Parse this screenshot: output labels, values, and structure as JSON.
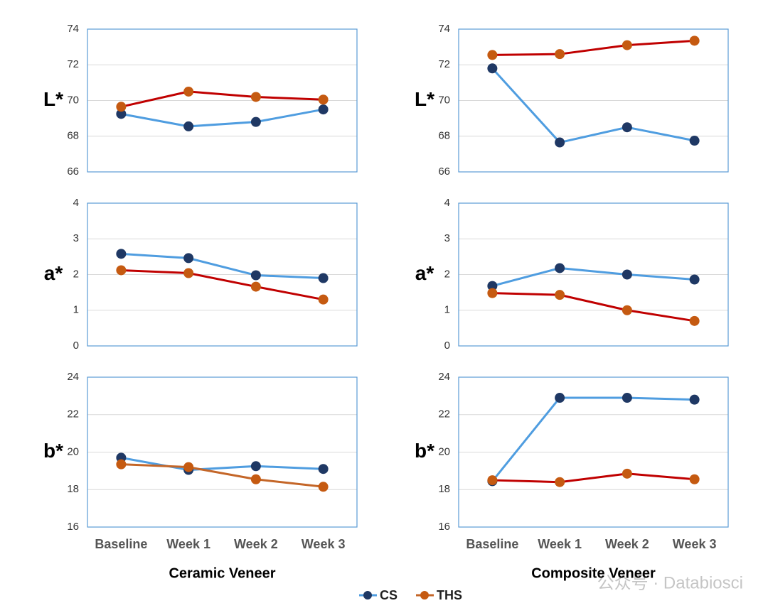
{
  "chart_data": [
    {
      "type": "line",
      "ylabel": "L*",
      "categories": [
        null,
        null,
        null,
        null
      ],
      "ylim": [
        66,
        74
      ],
      "yticks": [
        66,
        68,
        70,
        72,
        74
      ],
      "series": [
        {
          "name": "CS",
          "color": "#4f9de0",
          "marker_color": "#1f3864",
          "values": [
            69.25,
            68.55,
            68.8,
            69.5
          ]
        },
        {
          "name": "THS",
          "color": "#c00000",
          "marker_color": "#c55a11",
          "values": [
            69.65,
            70.5,
            70.2,
            70.05
          ]
        }
      ]
    },
    {
      "type": "line",
      "ylabel": "L*",
      "categories": [
        null,
        null,
        null,
        null
      ],
      "ylim": [
        66,
        74
      ],
      "yticks": [
        66,
        68,
        70,
        72,
        74
      ],
      "series": [
        {
          "name": "CS",
          "color": "#4f9de0",
          "marker_color": "#1f3864",
          "values": [
            71.8,
            67.65,
            68.5,
            67.75
          ]
        },
        {
          "name": "THS",
          "color": "#c00000",
          "marker_color": "#c55a11",
          "values": [
            72.55,
            72.6,
            73.1,
            73.35
          ]
        }
      ]
    },
    {
      "type": "line",
      "ylabel": "a*",
      "categories": [
        null,
        null,
        null,
        null
      ],
      "ylim": [
        0,
        4
      ],
      "yticks": [
        0,
        1,
        2,
        3,
        4
      ],
      "series": [
        {
          "name": "CS",
          "color": "#4f9de0",
          "marker_color": "#1f3864",
          "values": [
            2.58,
            2.46,
            1.98,
            1.9
          ]
        },
        {
          "name": "THS",
          "color": "#c00000",
          "marker_color": "#c55a11",
          "values": [
            2.12,
            2.04,
            1.66,
            1.3
          ]
        }
      ]
    },
    {
      "type": "line",
      "ylabel": "a*",
      "categories": [
        null,
        null,
        null,
        null
      ],
      "ylim": [
        0,
        4
      ],
      "yticks": [
        0,
        1,
        2,
        3,
        4
      ],
      "series": [
        {
          "name": "CS",
          "color": "#4f9de0",
          "marker_color": "#1f3864",
          "values": [
            1.68,
            2.18,
            2.0,
            1.86
          ]
        },
        {
          "name": "THS",
          "color": "#c00000",
          "marker_color": "#c55a11",
          "values": [
            1.48,
            1.43,
            1.0,
            0.7
          ]
        }
      ]
    },
    {
      "type": "line",
      "ylabel": "b*",
      "xlabel": "Ceramic Veneer",
      "categories": [
        "Baseline",
        "Week 1",
        "Week 2",
        "Week 3"
      ],
      "ylim": [
        16,
        24
      ],
      "yticks": [
        16,
        18,
        20,
        22,
        24
      ],
      "series": [
        {
          "name": "CS",
          "color": "#4f9de0",
          "marker_color": "#1f3864",
          "values": [
            19.7,
            19.05,
            19.25,
            19.1
          ]
        },
        {
          "name": "THS",
          "color": "#c46628",
          "marker_color": "#c55a11",
          "values": [
            19.35,
            19.2,
            18.55,
            18.15
          ]
        }
      ]
    },
    {
      "type": "line",
      "ylabel": "b*",
      "xlabel": "Composite Veneer",
      "categories": [
        "Baseline",
        "Week 1",
        "Week 2",
        "Week 3"
      ],
      "ylim": [
        16,
        24
      ],
      "yticks": [
        16,
        18,
        20,
        22,
        24
      ],
      "series": [
        {
          "name": "CS",
          "color": "#4f9de0",
          "marker_color": "#1f3864",
          "values": [
            18.45,
            22.9,
            22.9,
            22.8
          ]
        },
        {
          "name": "THS",
          "color": "#c00000",
          "marker_color": "#c55a11",
          "values": [
            18.5,
            18.4,
            18.85,
            18.55
          ]
        }
      ]
    }
  ],
  "watermark": "公众号 · Databiosci"
}
